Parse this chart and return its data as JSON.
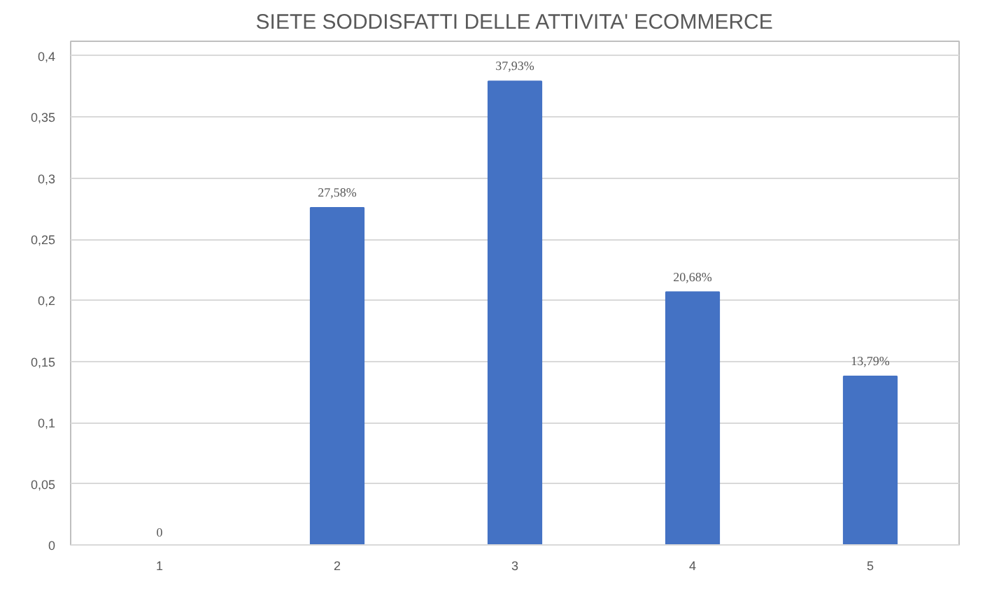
{
  "chart_data": {
    "type": "bar",
    "title": "SIETE SODDISFATTI DELLE ATTIVITA' ECOMMERCE",
    "categories": [
      "1",
      "2",
      "3",
      "4",
      "5"
    ],
    "values": [
      0,
      0.2758,
      0.3793,
      0.2068,
      0.1379
    ],
    "value_labels": [
      "0",
      "27,58%",
      "37,93%",
      "20,68%",
      "13,79%"
    ],
    "color": "#4472c4",
    "ylim": [
      0,
      0.4
    ],
    "yticks": [
      0,
      {
        "value": 0.05,
        "label": "0,05"
      },
      {
        "value": 0.1,
        "label": "0,1"
      },
      {
        "value": 0.15,
        "label": "0,15"
      },
      {
        "value": 0.2,
        "label": "0,2"
      },
      {
        "value": 0.25,
        "label": "0,25"
      },
      {
        "value": 0.3,
        "label": "0,3"
      },
      {
        "value": 0.35,
        "label": "0,35"
      },
      {
        "value": 0.4,
        "label": "0,4"
      }
    ],
    "grid": "y"
  }
}
